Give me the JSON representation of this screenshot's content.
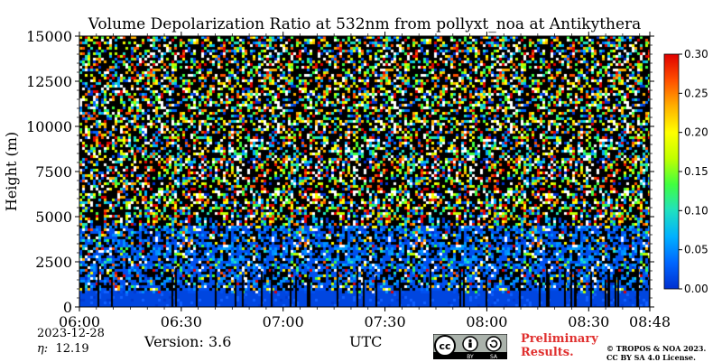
{
  "chart_data": {
    "type": "heatmap",
    "title": "Volume Depolarization Ratio at 532nm from pollyxt_noa at Antikythera",
    "xlabel": "UTC",
    "ylabel": "Height (m)",
    "x_ticks": [
      "06:00",
      "06:30",
      "07:00",
      "07:30",
      "08:00",
      "08:30",
      "08:48"
    ],
    "x_tick_minutes": [
      0,
      30,
      60,
      90,
      120,
      150,
      168
    ],
    "xlim_minutes": [
      0,
      168
    ],
    "y_ticks": [
      0,
      2500,
      5000,
      7500,
      10000,
      12500,
      15000
    ],
    "ylim": [
      0,
      15000
    ],
    "colorbar": {
      "ticks": [
        "0.00",
        "0.05",
        "0.10",
        "0.15",
        "0.20",
        "0.25",
        "0.30"
      ],
      "values": [
        0,
        0.05,
        0.1,
        0.15,
        0.2,
        0.25,
        0.3
      ],
      "range": [
        0,
        0.3
      ],
      "colors": [
        "#0030d0",
        "#0066ff",
        "#00b0ff",
        "#20e0c0",
        "#40ff40",
        "#c0ff00",
        "#ffff00",
        "#ffb000",
        "#ff5000",
        "#e00000"
      ]
    },
    "layers": [
      {
        "description": "low depolarization near-surface layer",
        "height_range_m": [
          0,
          1500
        ],
        "value": 0.02
      },
      {
        "description": "noisy signal region",
        "height_range_m": [
          1500,
          15000
        ],
        "value_range": [
          0,
          0.3
        ]
      }
    ],
    "noise_color": "#000000"
  },
  "footer": {
    "date": "2023-12-28",
    "eta_label": "η:",
    "eta_value": "12.19",
    "version": "Version: 3.6",
    "preliminary": "Preliminary Results.",
    "copyright": "© TROPOS & NOA 2023. CC BY SA 4.0 License.",
    "license_badge": [
      "cc",
      "BY",
      "SA"
    ]
  }
}
